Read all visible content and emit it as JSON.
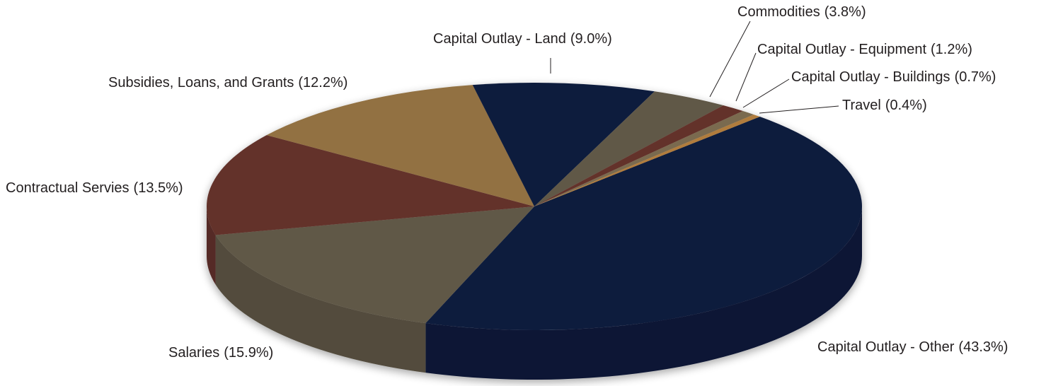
{
  "chart_data": {
    "type": "pie",
    "categories": [
      "Capital Outlay - Other",
      "Salaries",
      "Contractual Servies",
      "Subsidies, Loans, and Grants",
      "Capital Outlay - Land",
      "Commodities",
      "Capital Outlay - Equipment",
      "Capital Outlay - Buildings",
      "Travel"
    ],
    "values": [
      43.3,
      15.9,
      13.5,
      12.2,
      9.0,
      3.8,
      1.2,
      0.7,
      0.4
    ],
    "value_labels": [
      "(43.3%)",
      "(15.9%)",
      "(13.5%)",
      "(12.2%)",
      "(9.0%)",
      "(3.8%)",
      "(1.2%)",
      "(0.7%)",
      "(0.4%)"
    ],
    "colors": [
      "#0c1a3d",
      "#615847",
      "#63322c",
      "#927142",
      "#0c1a3d",
      "#615847",
      "#63322c",
      "#7a6a50",
      "#b07c3c"
    ]
  }
}
